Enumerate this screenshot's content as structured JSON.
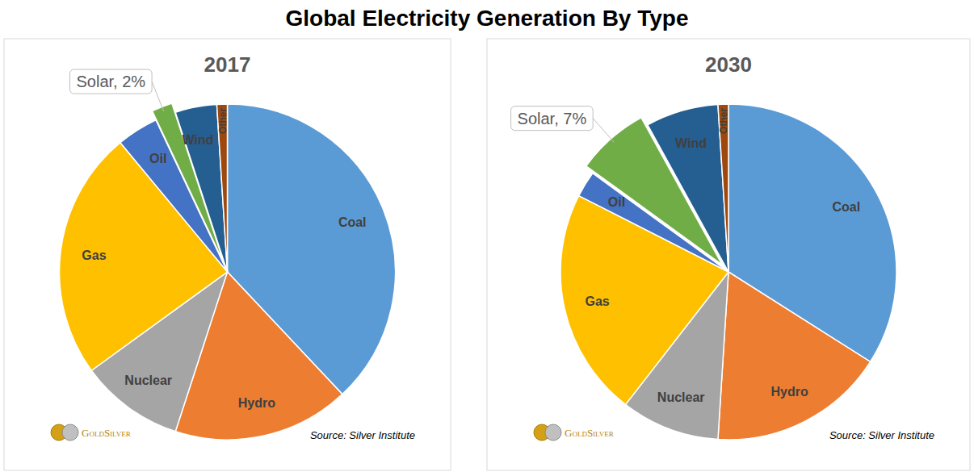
{
  "title": "Global Electricity Generation By Type",
  "chart_data": [
    {
      "type": "pie",
      "title": "2017",
      "categories": [
        "Coal",
        "Hydro",
        "Nuclear",
        "Gas",
        "Oil",
        "Solar",
        "Wind",
        "Other"
      ],
      "values": [
        38,
        17,
        10,
        24,
        4,
        2,
        4,
        1
      ],
      "value_labels": [
        null,
        null,
        null,
        null,
        null,
        "Solar, 2%",
        null,
        null
      ],
      "colors": [
        "#5b9bd5",
        "#ed7d31",
        "#a5a5a5",
        "#ffc000",
        "#4472c4",
        "#70ad47",
        "#255e91",
        "#9e480e"
      ],
      "annotations": [
        "GoldSilver",
        "Source: Silver Institute"
      ]
    },
    {
      "type": "pie",
      "title": "2030",
      "categories": [
        "Coal",
        "Hydro",
        "Nuclear",
        "Gas",
        "Oil",
        "Solar",
        "Wind",
        "Other"
      ],
      "values": [
        34,
        17,
        9.5,
        22,
        2.5,
        7,
        7,
        1
      ],
      "value_labels": [
        null,
        null,
        null,
        null,
        null,
        "Solar, 7%",
        null,
        null
      ],
      "colors": [
        "#5b9bd5",
        "#ed7d31",
        "#a5a5a5",
        "#ffc000",
        "#4472c4",
        "#70ad47",
        "#255e91",
        "#9e480e"
      ],
      "annotations": [
        "GoldSilver",
        "Source: Silver Institute"
      ]
    }
  ]
}
